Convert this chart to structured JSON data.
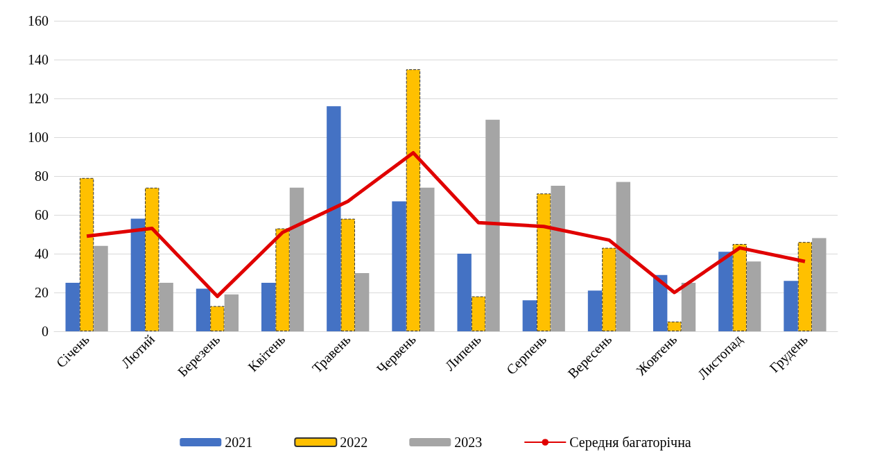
{
  "chart_data": {
    "type": "bar",
    "categories": [
      "Січень",
      "Лютий",
      "Березень",
      "Квітень",
      "Травень",
      "Червень",
      "Липень",
      "Серпень",
      "Вересень",
      "Жовтень",
      "Листопад",
      "Грудень"
    ],
    "series": [
      {
        "name": "2021",
        "color": "#4472c4",
        "values": [
          25,
          58,
          22,
          25,
          116,
          67,
          40,
          16,
          21,
          29,
          41,
          26
        ]
      },
      {
        "name": "2022",
        "color": "#ffc000",
        "line_style": "dashed",
        "values": [
          79,
          74,
          13,
          53,
          58,
          135,
          18,
          71,
          43,
          5,
          45,
          46
        ]
      },
      {
        "name": "2023",
        "color": "#a5a5a5",
        "values": [
          44,
          25,
          19,
          74,
          30,
          74,
          109,
          75,
          77,
          25,
          36,
          48
        ]
      },
      {
        "name": "Середня багаторічна",
        "type": "line",
        "color": "#e00000",
        "marker": "none",
        "values": [
          49,
          53,
          18,
          51,
          67,
          92,
          56,
          54,
          47,
          20,
          43,
          36
        ]
      }
    ],
    "ylim": [
      0,
      160
    ],
    "yticks": [
      0,
      20,
      40,
      60,
      80,
      100,
      120,
      140,
      160
    ],
    "grid": "y",
    "legend": "bottom"
  }
}
